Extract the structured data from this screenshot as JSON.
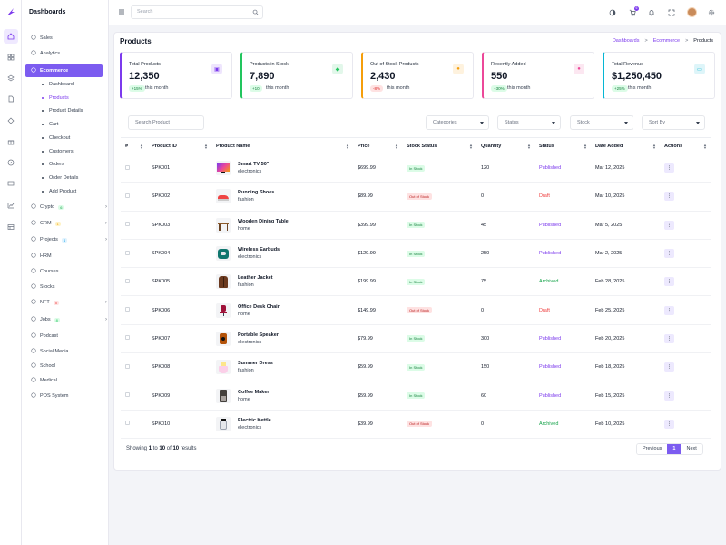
{
  "app": {
    "title": "Dashboards"
  },
  "topbar": {
    "search_placeholder": "Search",
    "cart_count": "6"
  },
  "sidebar": {
    "items": [
      {
        "label": "Sales",
        "icon": "circle-dollar-icon"
      },
      {
        "label": "Analytics",
        "icon": "pie-chart-icon"
      },
      {
        "label": "Ecommerce",
        "icon": "cart-icon"
      },
      {
        "label": "Crypto",
        "icon": "bitcoin-icon",
        "badge": "6"
      },
      {
        "label": "CRM",
        "icon": "users-icon",
        "badge": "1"
      },
      {
        "label": "Projects",
        "icon": "folder-icon",
        "badge": "4"
      },
      {
        "label": "HRM",
        "icon": "id-card-icon"
      },
      {
        "label": "Courses",
        "icon": "book-icon"
      },
      {
        "label": "Stocks",
        "icon": "chart-icon"
      },
      {
        "label": "NFT",
        "icon": "nft-icon",
        "badge": "5"
      },
      {
        "label": "Jobs",
        "icon": "briefcase-icon",
        "badge": "8"
      },
      {
        "label": "Podcast",
        "icon": "mic-icon"
      },
      {
        "label": "Social Media",
        "icon": "chat-icon"
      },
      {
        "label": "School",
        "icon": "school-icon"
      },
      {
        "label": "Medical",
        "icon": "pulse-icon"
      },
      {
        "label": "POS System",
        "icon": "pos-icon"
      }
    ],
    "ecommerce_sub": [
      "Dashboard",
      "Products",
      "Product Details",
      "Cart",
      "Checkout",
      "Customers",
      "Orders",
      "Order Details",
      "Add Product"
    ]
  },
  "page": {
    "title": "Products",
    "breadcrumb": [
      "Dashboards",
      "Ecommerce",
      "Products"
    ]
  },
  "stats": [
    {
      "label": "Total Products",
      "value": "12,350",
      "change": "+15%",
      "period": "this month",
      "color": "#7c3aed"
    },
    {
      "label": "Products in Stock",
      "value": "7,890",
      "change": "+10",
      "period": "this month",
      "color": "#22c55e"
    },
    {
      "label": "Out of Stock Products",
      "value": "2,430",
      "change": "-8%",
      "period": "this month",
      "color": "#f59e0b"
    },
    {
      "label": "Recently Added",
      "value": "550",
      "change": "+30%",
      "period": "this month",
      "color": "#ec4899"
    },
    {
      "label": "Total Revenue",
      "value": "$1,250,450",
      "change": "+25%",
      "period": "this month",
      "color": "#06b6d4"
    }
  ],
  "filters": {
    "search_placeholder": "Search Product",
    "categories": "Categories",
    "status": "Status",
    "stock": "Stock",
    "sort": "Sort By"
  },
  "table": {
    "headers": [
      "#",
      "Product ID",
      "Product Name",
      "Price",
      "Stock Status",
      "Quantity",
      "Status",
      "Date Added",
      "Actions"
    ],
    "rows": [
      {
        "id": "SPK001",
        "name": "Smart TV 50\"",
        "category": "electronics",
        "price": "$699.99",
        "stock": "In Stock",
        "qty": "120",
        "status": "Published",
        "date": "Mar 12, 2025",
        "thumb": "tv"
      },
      {
        "id": "SPK002",
        "name": "Running Shoes",
        "category": "fashion",
        "price": "$89.99",
        "stock": "Out of Stock",
        "qty": "0",
        "status": "Draft",
        "date": "Mar 10, 2025",
        "thumb": "shoe"
      },
      {
        "id": "SPK003",
        "name": "Wooden Dining Table",
        "category": "home",
        "price": "$399.99",
        "stock": "In Stock",
        "qty": "45",
        "status": "Published",
        "date": "Mar 5, 2025",
        "thumb": "table"
      },
      {
        "id": "SPK004",
        "name": "Wireless Earbuds",
        "category": "electronics",
        "price": "$129.99",
        "stock": "In Stock",
        "qty": "250",
        "status": "Published",
        "date": "Mar 2, 2025",
        "thumb": "earbuds"
      },
      {
        "id": "SPK005",
        "name": "Leather Jacket",
        "category": "fashion",
        "price": "$199.99",
        "stock": "In Stock",
        "qty": "75",
        "status": "Archived",
        "date": "Feb 28, 2025",
        "thumb": "jacket"
      },
      {
        "id": "SPK006",
        "name": "Office Desk Chair",
        "category": "home",
        "price": "$149.99",
        "stock": "Out of Stock",
        "qty": "0",
        "status": "Draft",
        "date": "Feb 25, 2025",
        "thumb": "chair"
      },
      {
        "id": "SPK007",
        "name": "Portable Speaker",
        "category": "electronics",
        "price": "$79.99",
        "stock": "In Stock",
        "qty": "300",
        "status": "Published",
        "date": "Feb 20, 2025",
        "thumb": "speaker"
      },
      {
        "id": "SPK008",
        "name": "Summer Dress",
        "category": "fashion",
        "price": "$59.99",
        "stock": "In Stock",
        "qty": "150",
        "status": "Published",
        "date": "Feb 18, 2025",
        "thumb": "dress"
      },
      {
        "id": "SPK009",
        "name": "Coffee Maker",
        "category": "home",
        "price": "$59.99",
        "stock": "In Stock",
        "qty": "60",
        "status": "Published",
        "date": "Feb 15, 2025",
        "thumb": "coffee"
      },
      {
        "id": "SPK010",
        "name": "Electric Kettle",
        "category": "electronics",
        "price": "$39.99",
        "stock": "Out of Stock",
        "qty": "0",
        "status": "Archived",
        "date": "Feb 10, 2025",
        "thumb": "kettle"
      }
    ]
  },
  "footer": {
    "showing": "Showing",
    "from": "1",
    "to_word": "to",
    "to": "10",
    "of_word": "of",
    "total": "10",
    "results": "results",
    "prev": "Previous",
    "page": "1",
    "next": "Next"
  }
}
